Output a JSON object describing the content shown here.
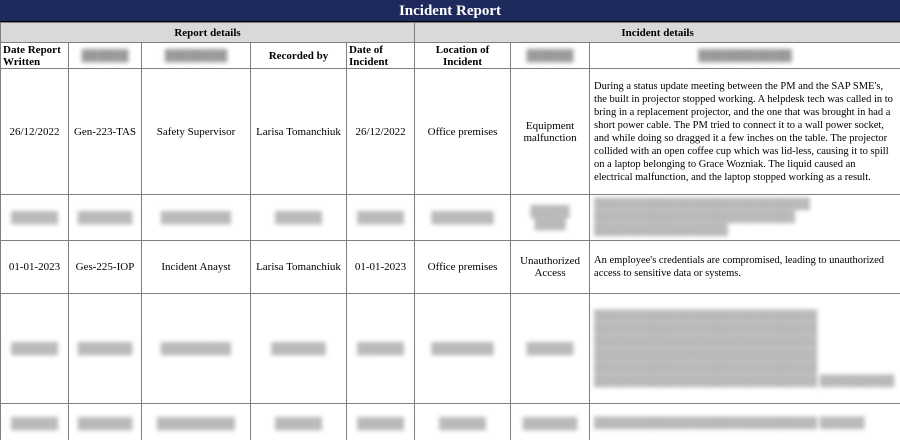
{
  "title": "Incident Report",
  "groups": {
    "report": "Report details",
    "incident": "Incident details"
  },
  "headers": {
    "date_written": "Date Report Written",
    "recorded_by": "Recorded by",
    "date_of_incident": "Date of Incident",
    "location": "Location of Incident"
  },
  "rows": [
    {
      "date_written": "26/12/2022",
      "id": "Gen-223-TAS",
      "role": "Safety Supervisor",
      "recorded_by": "Larisa Tomanchiuk",
      "date_of_incident": "26/12/2022",
      "location": "Office premises",
      "type": "Equipment malfunction",
      "description": "During a status update meeting between the PM and the SAP SME's, the built in projector stopped working. A helpdesk tech was called in to bring in a replacement projector, and the one that was brought in had a short power cable. The PM tried to connect it to a wall power socket, and while doing so dragged it a few inches on the table. The projector collided with an open coffee cup which was lid-less, causing it to spill on a laptop belonging to Grace Wozniak. The liquid caused an electrical malfunction, and the laptop stopped working as a result."
    },
    {
      "date_written": "",
      "id": "",
      "role": "",
      "recorded_by": "",
      "date_of_incident": "",
      "location": "",
      "type": "",
      "description": ""
    },
    {
      "date_written": "01-01-2023",
      "id": "Ges-225-IOP",
      "role": "Incident Anayst",
      "recorded_by": "Larisa Tomanchiuk",
      "date_of_incident": "01-01-2023",
      "location": "Office premises",
      "type": "Unauthorized Access",
      "description": "An employee's credentials are compromised, leading to unauthorized access to sensitive data or systems."
    },
    {
      "date_written": "",
      "id": "",
      "role": "",
      "recorded_by": "",
      "date_of_incident": "",
      "location": "",
      "type": "",
      "description": ""
    },
    {
      "date_written": "",
      "id": "",
      "role": "",
      "recorded_by": "",
      "date_of_incident": "",
      "location": "",
      "type": "",
      "description": ""
    }
  ],
  "colors": {
    "title_bg": "#1f2a5c",
    "group_bg": "#d9d9d9",
    "grid": "#7f7f7f"
  }
}
